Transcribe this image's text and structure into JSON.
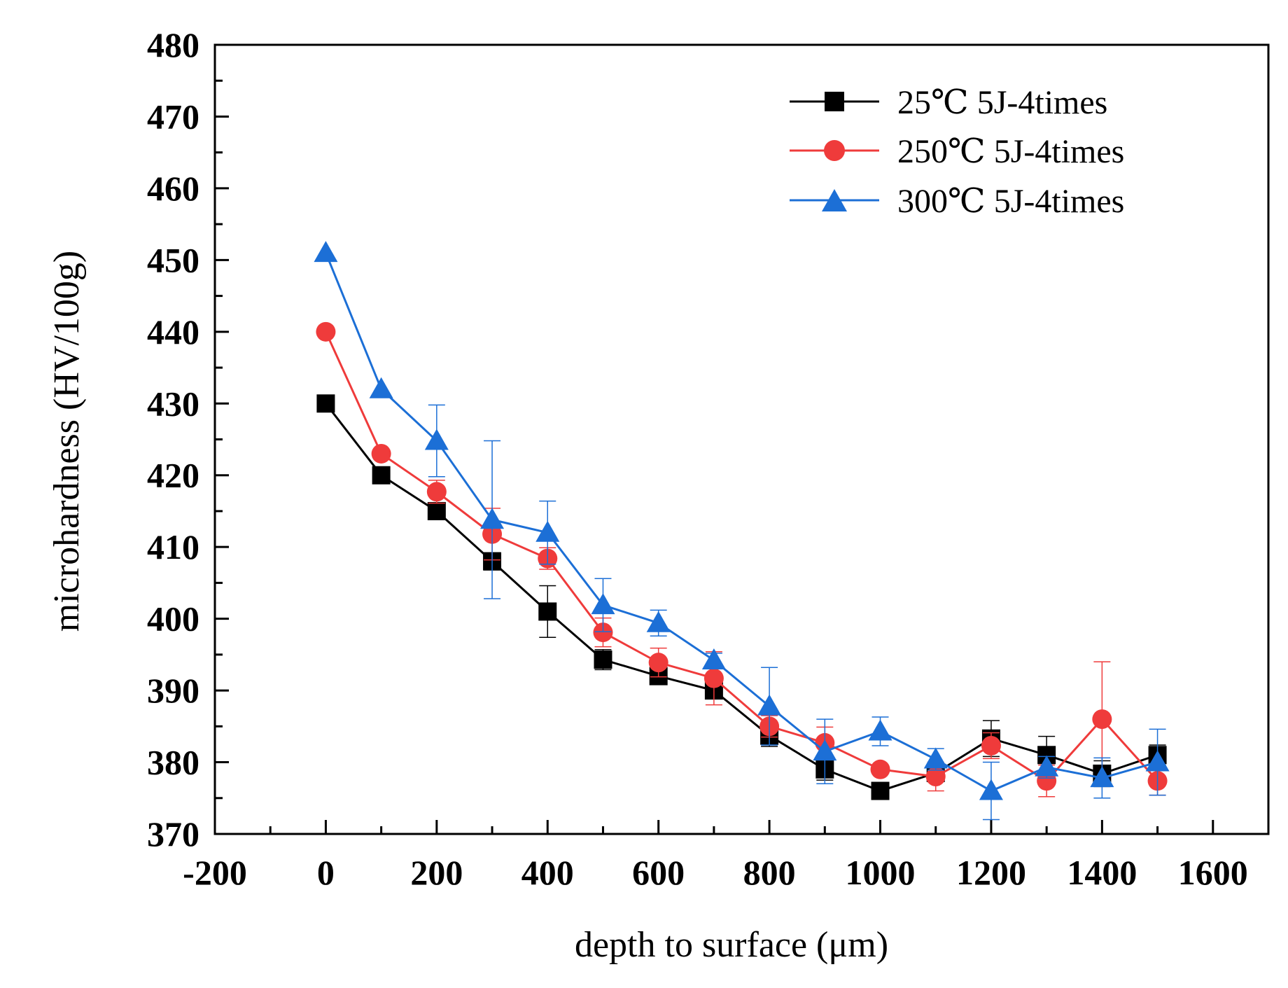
{
  "chart_data": {
    "type": "line",
    "title": "",
    "xlabel": "depth to surface (μm)",
    "ylabel": "microhardness (HV/100g)",
    "xlim": [
      -200,
      1700
    ],
    "ylim": [
      370,
      480
    ],
    "xticks": [
      -200,
      0,
      200,
      400,
      600,
      800,
      1000,
      1200,
      1400,
      1600
    ],
    "yticks": [
      370,
      380,
      390,
      400,
      410,
      420,
      430,
      440,
      450,
      460,
      470,
      480
    ],
    "xtick_labels": [
      "-200",
      "0",
      "200",
      "400",
      "600",
      "800",
      "1000",
      "1200",
      "1400",
      "1600"
    ],
    "ytick_labels": [
      "370",
      "380",
      "390",
      "400",
      "410",
      "420",
      "430",
      "440",
      "450",
      "460",
      "470",
      "480"
    ],
    "legend_position": "top-right",
    "x": [
      0,
      100,
      200,
      300,
      400,
      500,
      600,
      700,
      800,
      900,
      1000,
      1100,
      1200,
      1300,
      1400,
      1500
    ],
    "series": [
      {
        "name": "25℃ 5J-4times",
        "color": "#000000",
        "marker": "square",
        "values": [
          430,
          420,
          415,
          408,
          401,
          394.3,
          392,
          390,
          383.7,
          379,
          376,
          378.5,
          383.3,
          381,
          378.4,
          381
        ],
        "errors": [
          0,
          0,
          0,
          1.2,
          3.6,
          1.4,
          0.5,
          1.0,
          1.5,
          1.5,
          0,
          1.0,
          2.5,
          2.6,
          1.8,
          1.4
        ]
      },
      {
        "name": "250℃ 5J-4times",
        "color": "#ef3b3b",
        "marker": "circle",
        "values": [
          440,
          423,
          417.7,
          411.8,
          408.4,
          398.1,
          393.9,
          391.7,
          385,
          382.7,
          379,
          378,
          382.3,
          377.4,
          386,
          377.4
        ],
        "errors": [
          0,
          0,
          1.6,
          3.6,
          1.5,
          2.0,
          2.0,
          3.7,
          1.5,
          2.2,
          0,
          2.0,
          1.8,
          2.2,
          8.0,
          2.0
        ]
      },
      {
        "name": "300℃ 5J-4times",
        "color": "#1c6fd6",
        "marker": "triangle",
        "values": [
          451,
          432,
          424.8,
          413.8,
          412,
          401.9,
          399.4,
          394.2,
          387.8,
          381.5,
          384.3,
          380.4,
          376,
          379.3,
          377.8,
          380
        ],
        "errors": [
          0,
          0,
          5.0,
          11.0,
          4.4,
          3.7,
          1.8,
          1.0,
          5.4,
          4.5,
          2.0,
          1.5,
          4.0,
          1.5,
          2.8,
          4.6
        ]
      }
    ]
  }
}
